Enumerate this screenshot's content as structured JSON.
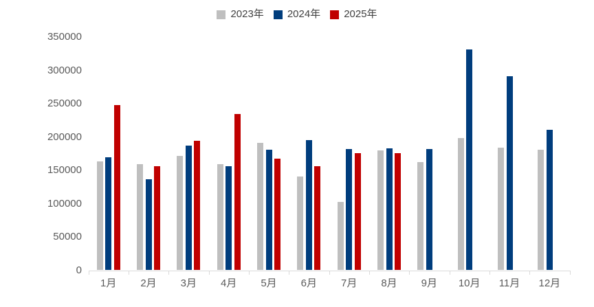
{
  "chart_data": {
    "type": "bar",
    "title": "",
    "categories": [
      "1月",
      "2月",
      "3月",
      "4月",
      "5月",
      "6月",
      "7月",
      "8月",
      "9月",
      "10月",
      "11月",
      "12月"
    ],
    "series": [
      {
        "name": "2023年",
        "color": "#BFBFBF",
        "values": [
          163000,
          159000,
          172000,
          159000,
          191000,
          141000,
          103000,
          180000,
          162000,
          198000,
          184000,
          181000
        ]
      },
      {
        "name": "2024年",
        "color": "#003D7D",
        "values": [
          170000,
          137000,
          187000,
          156000,
          181000,
          195000,
          182000,
          183000,
          182000,
          331000,
          291000,
          211000
        ]
      },
      {
        "name": "2025年",
        "color": "#C00000",
        "values": [
          248000,
          156000,
          194000,
          235000,
          168000,
          156000,
          176000,
          176000,
          null,
          null,
          null,
          null
        ]
      }
    ],
    "ylim": [
      0,
      350000
    ],
    "yticks": [
      0,
      50000,
      100000,
      150000,
      200000,
      250000,
      300000,
      350000
    ],
    "grid": false,
    "legend_position": "top",
    "axis_color": "#D9D9D9",
    "tick_label_color": "#595959",
    "legend_text_color": "#404040"
  }
}
